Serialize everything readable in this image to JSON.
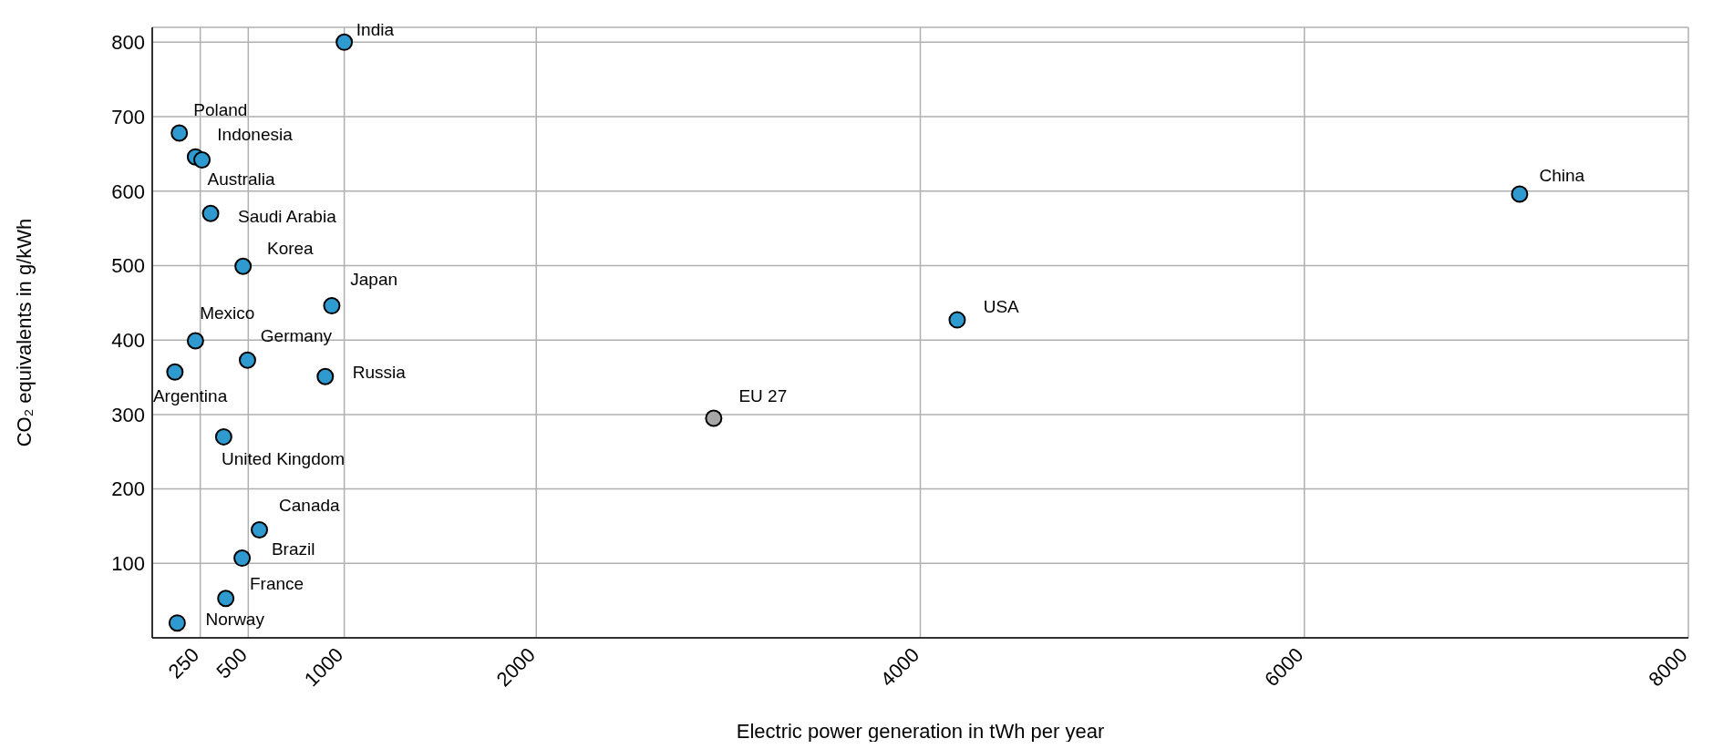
{
  "chart_data": {
    "type": "scatter",
    "xlabel": "Electric power generation in tWh per year",
    "ylabel": "CO₂ equivalents in g/kWh",
    "x": [
      1000,
      141,
      225,
      259,
      304,
      473,
      935,
      225,
      496,
      118,
      901,
      2924,
      4192,
      7121,
      372,
      558,
      468,
      383,
      130
    ],
    "values": [
      800,
      678,
      646,
      642,
      570,
      499,
      446,
      399,
      373,
      357,
      351,
      295,
      427,
      596,
      270,
      145,
      107,
      53,
      20
    ],
    "colors": [
      "#2e9ad0",
      "#2e9ad0",
      "#2e9ad0",
      "#2e9ad0",
      "#2e9ad0",
      "#2e9ad0",
      "#2e9ad0",
      "#2e9ad0",
      "#2e9ad0",
      "#2e9ad0",
      "#2e9ad0",
      "#a6a6a6",
      "#2e9ad0",
      "#2e9ad0",
      "#2e9ad0",
      "#2e9ad0",
      "#2e9ad0",
      "#2e9ad0",
      "#2e9ad0"
    ],
    "marker": "circle",
    "grid": true,
    "xlim": [
      0,
      8000
    ],
    "xticks": [
      250,
      500,
      1000,
      2000,
      4000,
      6000,
      8000
    ],
    "ylim": [
      0,
      820
    ],
    "yticks": [
      100,
      200,
      300,
      400,
      500,
      600,
      700,
      800
    ],
    "annotations": [
      {
        "text": "India",
        "x": 1000,
        "y": 800
      },
      {
        "text": "Poland",
        "x": 141,
        "y": 678
      },
      {
        "text": "Indonesia",
        "x": 225,
        "y": 646
      },
      {
        "text": "Australia",
        "x": 259,
        "y": 642
      },
      {
        "text": "Saudi Arabia",
        "x": 304,
        "y": 570
      },
      {
        "text": "Korea",
        "x": 473,
        "y": 499
      },
      {
        "text": "Japan",
        "x": 935,
        "y": 446
      },
      {
        "text": "Mexico",
        "x": 225,
        "y": 399
      },
      {
        "text": "Germany",
        "x": 496,
        "y": 373
      },
      {
        "text": "Argentina",
        "x": 118,
        "y": 357
      },
      {
        "text": "Russia",
        "x": 901,
        "y": 351
      },
      {
        "text": "EU 27",
        "x": 2924,
        "y": 295
      },
      {
        "text": "USA",
        "x": 4192,
        "y": 427
      },
      {
        "text": "China",
        "x": 7121,
        "y": 596
      },
      {
        "text": "United Kingdom",
        "x": 372,
        "y": 270
      },
      {
        "text": "Canada",
        "x": 558,
        "y": 145
      },
      {
        "text": "Brazil",
        "x": 468,
        "y": 107
      },
      {
        "text": "France",
        "x": 383,
        "y": 53
      },
      {
        "text": "Norway",
        "x": 130,
        "y": 20
      }
    ]
  }
}
